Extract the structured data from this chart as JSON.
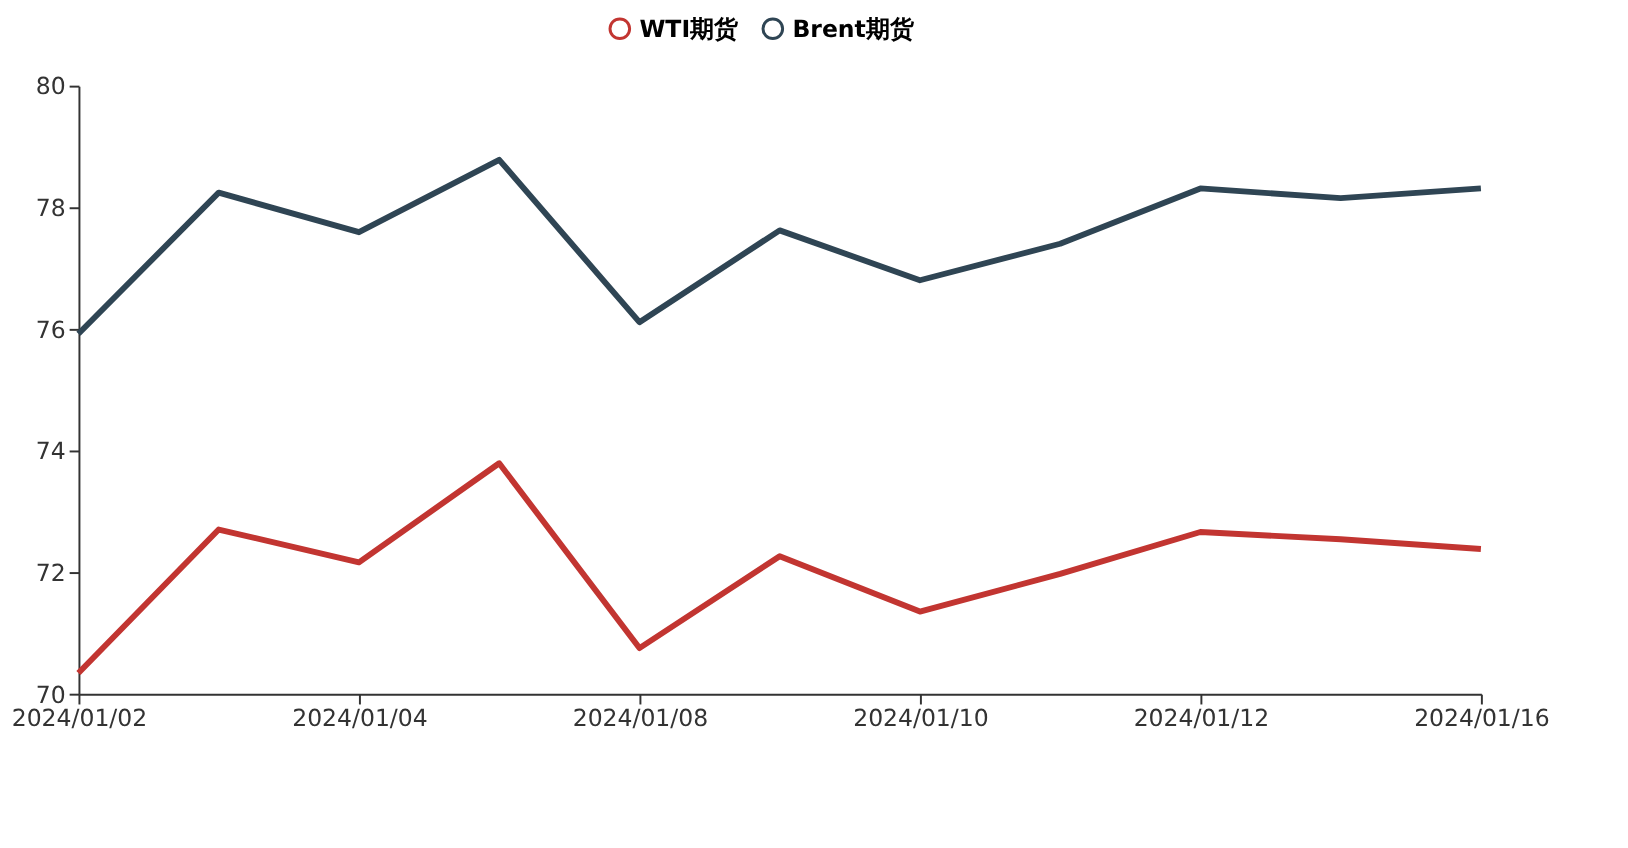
{
  "chart_data": {
    "type": "line",
    "categories": [
      "2024/01/02",
      null,
      "2024/01/04",
      null,
      "2024/01/08",
      null,
      "2024/01/10",
      null,
      "2024/01/12",
      null,
      "2024/01/16"
    ],
    "series": [
      {
        "name": "WTI期货",
        "color": "#c23531",
        "values": [
          70.34,
          72.7,
          72.16,
          73.79,
          70.75,
          72.26,
          71.35,
          71.97,
          72.66,
          72.54,
          72.38
        ]
      },
      {
        "name": "Brent期货",
        "color": "#2f4554",
        "values": [
          75.92,
          78.24,
          77.59,
          78.78,
          76.11,
          77.62,
          76.8,
          77.4,
          78.31,
          78.15,
          78.31
        ]
      }
    ],
    "ylim": [
      70,
      80
    ],
    "yticks": [
      70,
      72,
      74,
      76,
      78,
      80
    ],
    "grid": false,
    "legend": "top",
    "line_style": "solid"
  }
}
